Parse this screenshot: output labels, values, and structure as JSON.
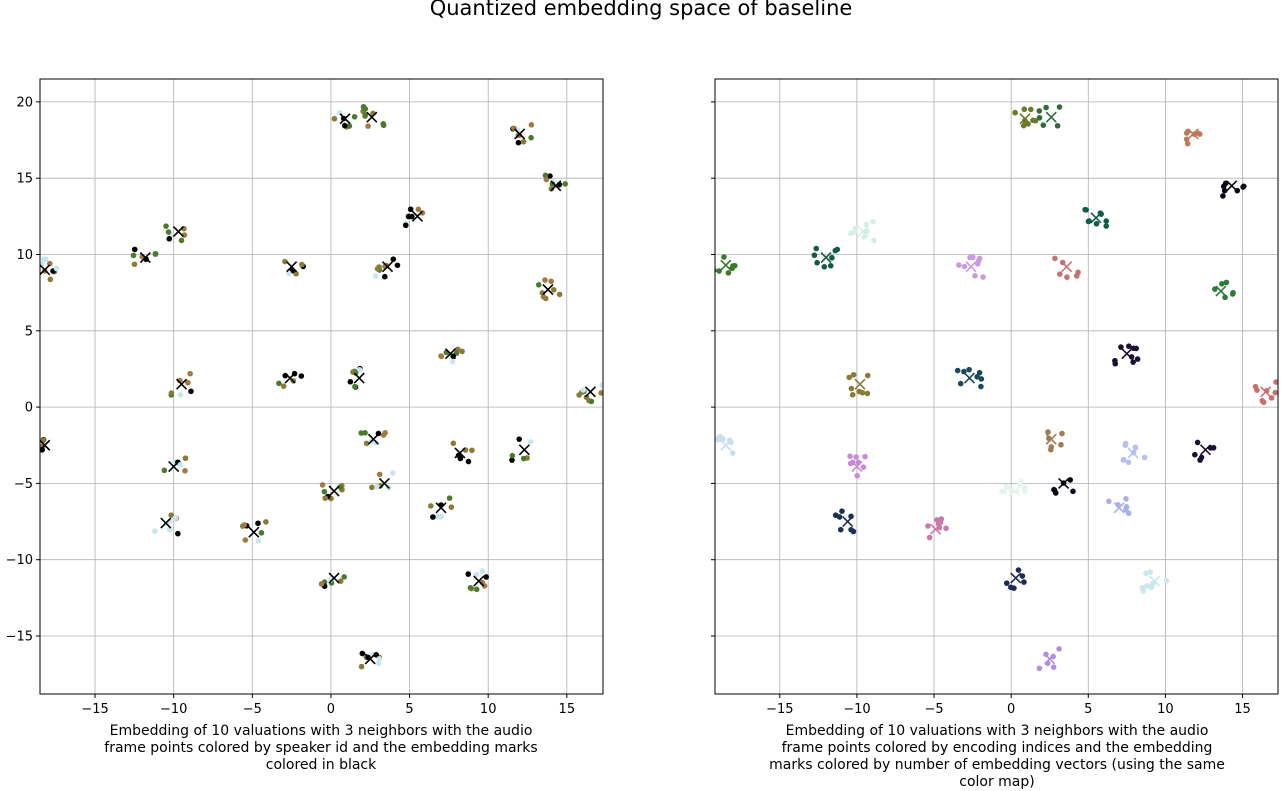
{
  "figure": {
    "title": "Quantized embedding space of baseline"
  },
  "chart_data": [
    {
      "type": "scatter",
      "title": "",
      "xlabel": "Embedding of 10 valuations with 3 neighbors with the audio frame points colored by speaker id and the embedding marks colored in black",
      "ylabel": "",
      "xlim": [
        -18.5,
        17.3
      ],
      "ylim": [
        -18.8,
        21.5
      ],
      "xticks": [
        -15,
        -10,
        -5,
        0,
        5,
        10,
        15
      ],
      "yticks": [
        -15,
        -10,
        -5,
        0,
        5,
        10,
        15,
        20
      ],
      "grid": true,
      "point_colors": [
        "#000000",
        "#8a7a36",
        "#4a7a30",
        "#c8e6f0",
        "#a07a40"
      ],
      "embedding_mark_color": "#000000",
      "clusters": [
        {
          "x": 0.9,
          "y": 18.9
        },
        {
          "x": 2.6,
          "y": 19.0
        },
        {
          "x": 12.0,
          "y": 17.9
        },
        {
          "x": 14.3,
          "y": 14.5
        },
        {
          "x": 5.5,
          "y": 12.5
        },
        {
          "x": -9.7,
          "y": 11.5
        },
        {
          "x": -11.8,
          "y": 9.8
        },
        {
          "x": -18.2,
          "y": 9.0
        },
        {
          "x": -2.5,
          "y": 9.2
        },
        {
          "x": 3.6,
          "y": 9.2
        },
        {
          "x": 13.8,
          "y": 7.7
        },
        {
          "x": 7.6,
          "y": 3.5
        },
        {
          "x": 16.5,
          "y": 1.0
        },
        {
          "x": -9.5,
          "y": 1.5
        },
        {
          "x": -2.6,
          "y": 1.9
        },
        {
          "x": 1.8,
          "y": 1.9
        },
        {
          "x": -18.2,
          "y": -2.5
        },
        {
          "x": 2.7,
          "y": -2.1
        },
        {
          "x": 8.2,
          "y": -3.0
        },
        {
          "x": 12.3,
          "y": -2.8
        },
        {
          "x": -10.0,
          "y": -3.9
        },
        {
          "x": 3.4,
          "y": -5.0
        },
        {
          "x": 0.2,
          "y": -5.5
        },
        {
          "x": 7.0,
          "y": -6.6
        },
        {
          "x": -10.5,
          "y": -7.6
        },
        {
          "x": -4.9,
          "y": -8.2
        },
        {
          "x": 0.2,
          "y": -11.2
        },
        {
          "x": 9.4,
          "y": -11.4
        },
        {
          "x": 2.5,
          "y": -16.5
        }
      ]
    },
    {
      "type": "scatter",
      "title": "",
      "xlabel": "Embedding of 10 valuations with 3 neighbors with the audio frame points colored by encoding indices and the embedding marks colored by number of embedding vectors (using the same color map)",
      "ylabel": "",
      "xlim": [
        -19.2,
        17.3
      ],
      "ylim": [
        -18.8,
        21.5
      ],
      "xticks": [
        -15,
        -10,
        -5,
        0,
        5,
        10,
        15
      ],
      "yticks": [
        -15,
        -10,
        -5,
        0,
        5,
        10,
        15,
        20
      ],
      "grid": true,
      "clusters": [
        {
          "x": 0.9,
          "y": 18.9,
          "color": "#6b7a2a"
        },
        {
          "x": 2.6,
          "y": 19.0,
          "color": "#2f6b3a"
        },
        {
          "x": 11.8,
          "y": 17.9,
          "color": "#c07a5a"
        },
        {
          "x": 14.3,
          "y": 14.5,
          "color": "#0a0a14"
        },
        {
          "x": 5.5,
          "y": 12.4,
          "color": "#0f5c4a"
        },
        {
          "x": -9.6,
          "y": 11.5,
          "color": "#d4efe8"
        },
        {
          "x": -12.0,
          "y": 9.8,
          "color": "#145c40"
        },
        {
          "x": -18.5,
          "y": 9.3,
          "color": "#3a7a2c"
        },
        {
          "x": -2.6,
          "y": 9.2,
          "color": "#c89ae0"
        },
        {
          "x": 3.6,
          "y": 9.2,
          "color": "#c87078"
        },
        {
          "x": 13.6,
          "y": 7.6,
          "color": "#2e7a3a"
        },
        {
          "x": 7.5,
          "y": 3.5,
          "color": "#1a1030"
        },
        {
          "x": 16.5,
          "y": 1.0,
          "color": "#c87070"
        },
        {
          "x": -9.8,
          "y": 1.5,
          "color": "#8a7a36"
        },
        {
          "x": -2.7,
          "y": 1.9,
          "color": "#1a4a5a"
        },
        {
          "x": -18.5,
          "y": -2.5,
          "color": "#c8dff0"
        },
        {
          "x": 2.6,
          "y": -2.1,
          "color": "#a07a50"
        },
        {
          "x": 12.6,
          "y": -2.8,
          "color": "#1a1030"
        },
        {
          "x": 7.9,
          "y": -3.0,
          "color": "#b8c0ec"
        },
        {
          "x": -10.0,
          "y": -3.9,
          "color": "#c88ad8"
        },
        {
          "x": 3.4,
          "y": -5.0,
          "color": "#0a0a14"
        },
        {
          "x": 0.2,
          "y": -5.5,
          "color": "#e6f4ec"
        },
        {
          "x": 7.0,
          "y": -6.6,
          "color": "#aab0e8"
        },
        {
          "x": -10.6,
          "y": -7.5,
          "color": "#1a3050"
        },
        {
          "x": -4.9,
          "y": -8.0,
          "color": "#c87aa8"
        },
        {
          "x": 0.3,
          "y": -11.2,
          "color": "#1a2a50"
        },
        {
          "x": 9.3,
          "y": -11.4,
          "color": "#c8e8ec"
        },
        {
          "x": 2.5,
          "y": -16.5,
          "color": "#b090dc"
        }
      ]
    }
  ]
}
